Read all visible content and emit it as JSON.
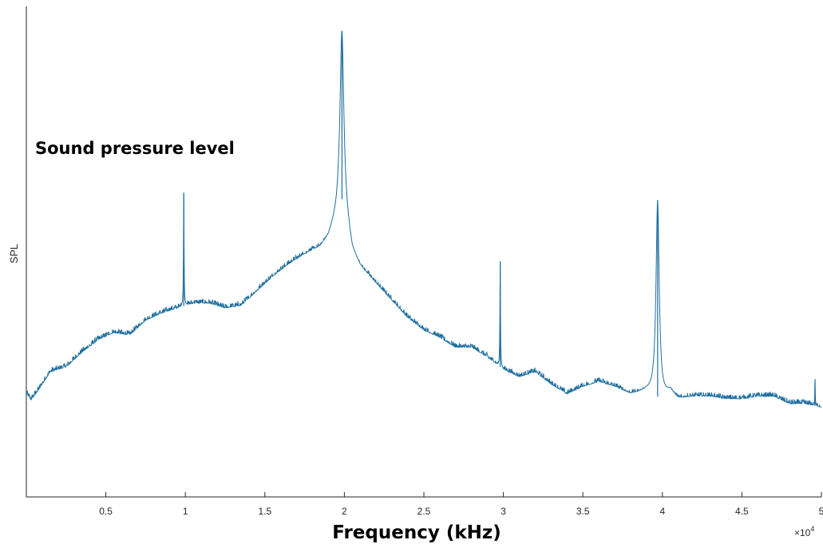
{
  "chart_data": {
    "type": "line",
    "xlabel": "Frequency (kHz)",
    "ylabel": "SPL",
    "annotation": "Sound pressure level",
    "x_exponent": {
      "base": "×10",
      "power": "4"
    },
    "xlim": [
      0,
      50000
    ],
    "ylim": [
      0,
      100
    ],
    "x_ticks": [
      {
        "value": 5000,
        "label": "0.5"
      },
      {
        "value": 10000,
        "label": "1"
      },
      {
        "value": 15000,
        "label": "1.5"
      },
      {
        "value": 20000,
        "label": "2"
      },
      {
        "value": 25000,
        "label": "2.5"
      },
      {
        "value": 30000,
        "label": "3"
      },
      {
        "value": 35000,
        "label": "3.5"
      },
      {
        "value": 40000,
        "label": "4"
      },
      {
        "value": 45000,
        "label": "4.5"
      },
      {
        "value": 50000,
        "label": "5"
      }
    ],
    "grid": false,
    "line_color": "#1f6fa0",
    "axis_color": "#262626",
    "baseline": {
      "x": [
        0,
        300,
        800,
        1500,
        2500,
        3500,
        4500,
        5500,
        6500,
        7500,
        8500,
        9500,
        10500,
        11500,
        12500,
        13500,
        14500,
        15500,
        16500,
        17500,
        18500,
        19000,
        19500,
        19800,
        20200,
        20500,
        21000,
        22000,
        23000,
        24000,
        25000,
        26000,
        27000,
        28000,
        29000,
        30000,
        31000,
        32000,
        33000,
        34000,
        35000,
        36000,
        37000,
        38000,
        39000,
        40000,
        40500,
        41000,
        42000,
        43000,
        44000,
        45000,
        46000,
        47000,
        48000,
        49000,
        50000
      ],
      "y": [
        21.0,
        19.8,
        22.0,
        25.5,
        26.5,
        29.5,
        32.0,
        33.5,
        33.0,
        36.0,
        37.5,
        38.5,
        39.5,
        39.5,
        38.5,
        39.0,
        42.0,
        45.0,
        47.5,
        49.5,
        51.0,
        53.0,
        57.0,
        61.5,
        55.0,
        50.0,
        47.0,
        43.5,
        40.0,
        36.5,
        34.0,
        32.5,
        30.5,
        30.5,
        28.5,
        26.0,
        24.5,
        25.5,
        23.0,
        21.0,
        22.5,
        23.5,
        22.5,
        21.0,
        21.5,
        20.0,
        21.5,
        20.0,
        20.5,
        20.5,
        20.0,
        20.0,
        20.5,
        20.5,
        19.0,
        19.0,
        18.3
      ]
    },
    "peaks": [
      {
        "x": 9900,
        "y": 62.0,
        "width": 20
      },
      {
        "x": 19850,
        "y": 95.0,
        "width": 140
      },
      {
        "x": 29800,
        "y": 48.0,
        "width": 20
      },
      {
        "x": 39700,
        "y": 60.5,
        "width": 120
      },
      {
        "x": 49600,
        "y": 24.0,
        "width": 15
      }
    ],
    "points": 2500,
    "noise": 0.9
  }
}
